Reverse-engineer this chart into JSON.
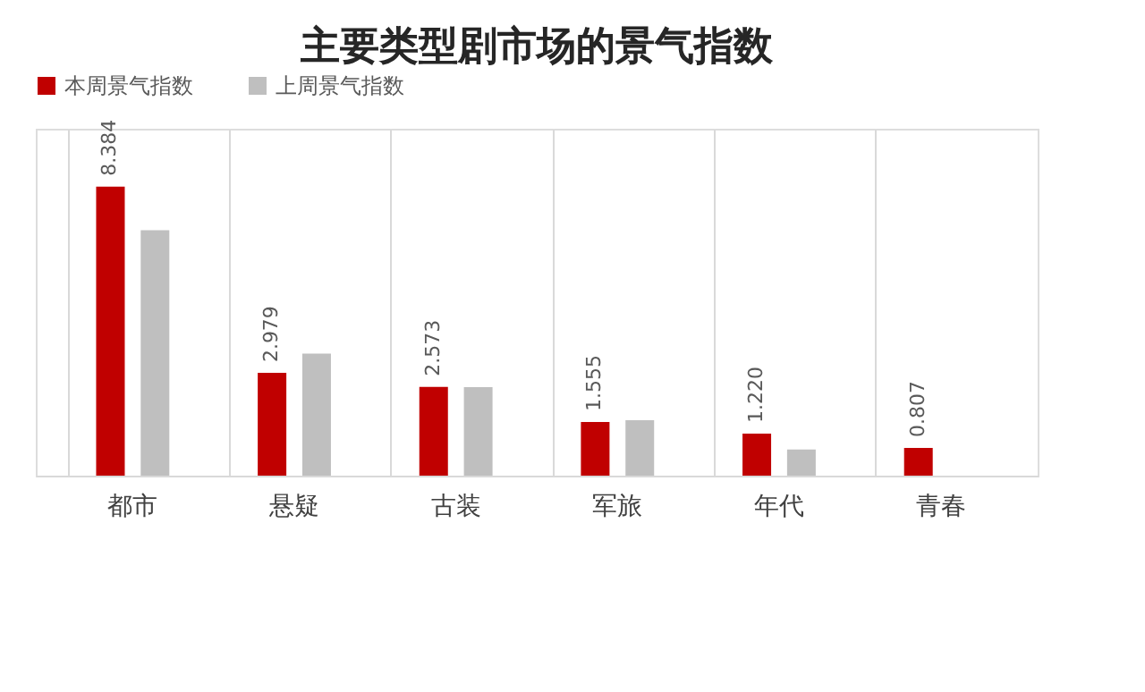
{
  "chart_data": {
    "type": "bar",
    "title": "主要类型剧市场的景气指数",
    "categories": [
      "都市",
      "悬疑",
      "古装",
      "军旅",
      "年代",
      "青春"
    ],
    "series": [
      {
        "name": "本周景气指数",
        "color": "#c00000",
        "values": [
          8.384,
          2.979,
          2.573,
          1.555,
          1.22,
          0.807
        ],
        "value_labels": [
          "8.384",
          "2.979",
          "2.573",
          "1.555",
          "1.220",
          "0.807"
        ]
      },
      {
        "name": "上周景气指数",
        "color": "#bfbfbf",
        "values": [
          7.12,
          3.54,
          2.57,
          1.61,
          0.76,
          null
        ]
      }
    ],
    "legend": "top",
    "grid": "x"
  }
}
